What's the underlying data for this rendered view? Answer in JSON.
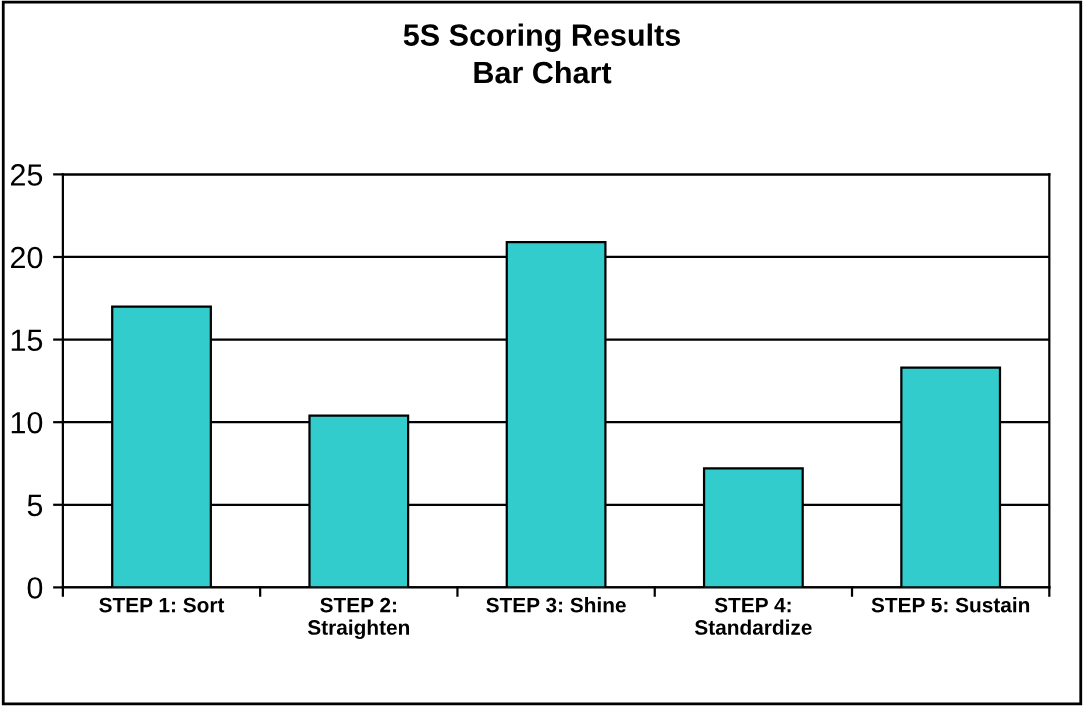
{
  "chart_data": {
    "type": "bar",
    "title": "5S Scoring Results\nBar Chart",
    "categories": [
      "STEP 1: Sort",
      "STEP 2:\nStraighten",
      "STEP 3: Shine",
      "STEP 4:\nStandardize",
      "STEP 5: Sustain"
    ],
    "values": [
      17,
      10.4,
      20.9,
      7.2,
      13.3
    ],
    "color": "#33cccc",
    "ylim": [
      0,
      25
    ],
    "yticks": [
      0,
      5,
      10,
      15,
      20,
      25
    ],
    "grid": "y",
    "legend": false
  }
}
